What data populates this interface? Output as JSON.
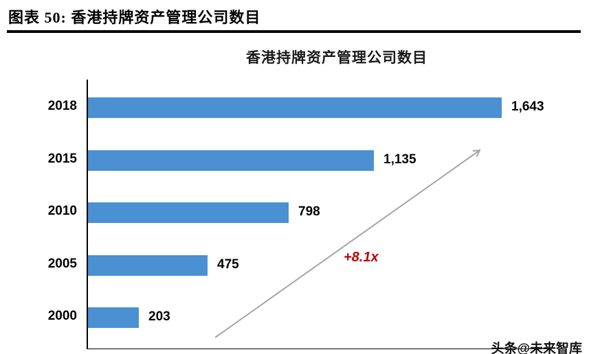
{
  "header": {
    "title": "图表 50:  香港持牌资产管理公司数目"
  },
  "chart_data": {
    "type": "bar",
    "orientation": "horizontal",
    "title": "香港持牌资产管理公司数目",
    "categories": [
      "2018",
      "2015",
      "2010",
      "2005",
      "2000"
    ],
    "values": [
      1643,
      1135,
      798,
      475,
      203
    ],
    "value_labels": [
      "1,643",
      "1,135",
      "798",
      "475",
      "203"
    ],
    "xlim": [
      0,
      1800
    ],
    "grid": false,
    "legend": "none",
    "annotation": "+8.1x",
    "annotation_color": "#c00000",
    "bar_color": "#4a90d2",
    "arrow_color": "#a6a6a6"
  },
  "watermark": "头条@未来智库"
}
